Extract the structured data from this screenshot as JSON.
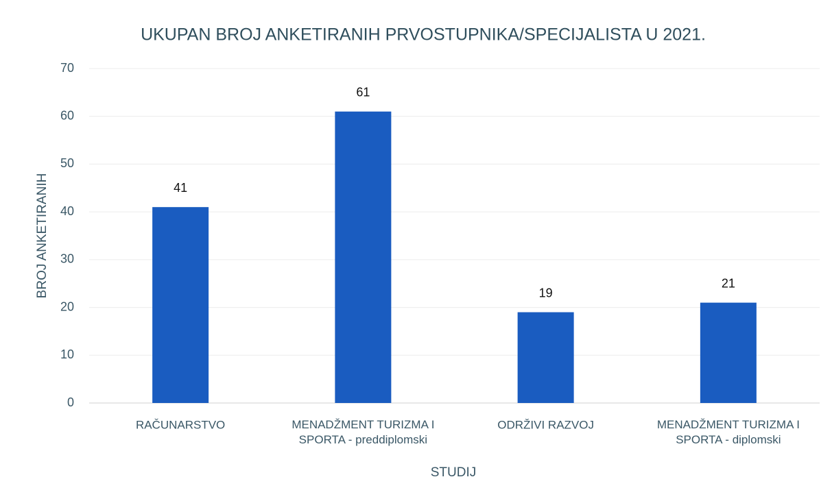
{
  "chart_data": {
    "type": "bar",
    "title": "UKUPAN BROJ ANKETIRANIH PRVOSTUPNIKA/SPECIJALISTA U 2021.",
    "x_label": "STUDIJ",
    "y_label": "BROJ ANKETIRANIH",
    "categories": [
      "RAČUNARSTVO",
      "MENADŽMENT TURIZMA I\nSPORTA - preddiplomski",
      "ODRŽIVI RAZVOJ",
      "MENADŽMENT TURIZMA I\nSPORTA - diplomski"
    ],
    "values": [
      41,
      61,
      19,
      21
    ],
    "color": "#1a5cc0",
    "ylim": [
      0,
      70
    ],
    "yticks": [
      0,
      10,
      20,
      30,
      40,
      50,
      60,
      70
    ],
    "grid": true
  }
}
